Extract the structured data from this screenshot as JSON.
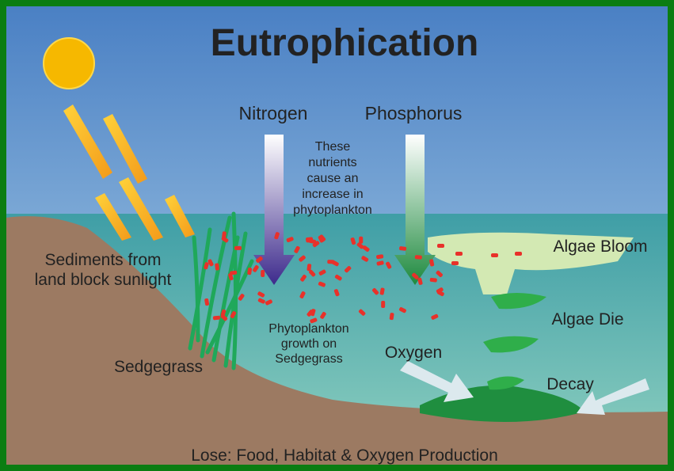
{
  "title": "Eutrophication",
  "nutrients": {
    "nitrogen": "Nitrogen",
    "phosphorus": "Phosphorus",
    "note": [
      "These",
      "nutrients",
      "cause an",
      "increase in",
      "phytoplankton"
    ]
  },
  "labels": {
    "sediments": [
      "Sediments from",
      "land block sunlight"
    ],
    "sedgegrass": "Sedgegrass",
    "phytoplankton_growth": [
      "Phytoplankton",
      "growth on",
      "Sedgegrass"
    ],
    "algae_bloom": "Algae Bloom",
    "algae_die": "Algae Die",
    "oxygen": "Oxygen",
    "decay": "Decay"
  },
  "footer": "Lose: Food, Habitat & Oxygen Production"
}
